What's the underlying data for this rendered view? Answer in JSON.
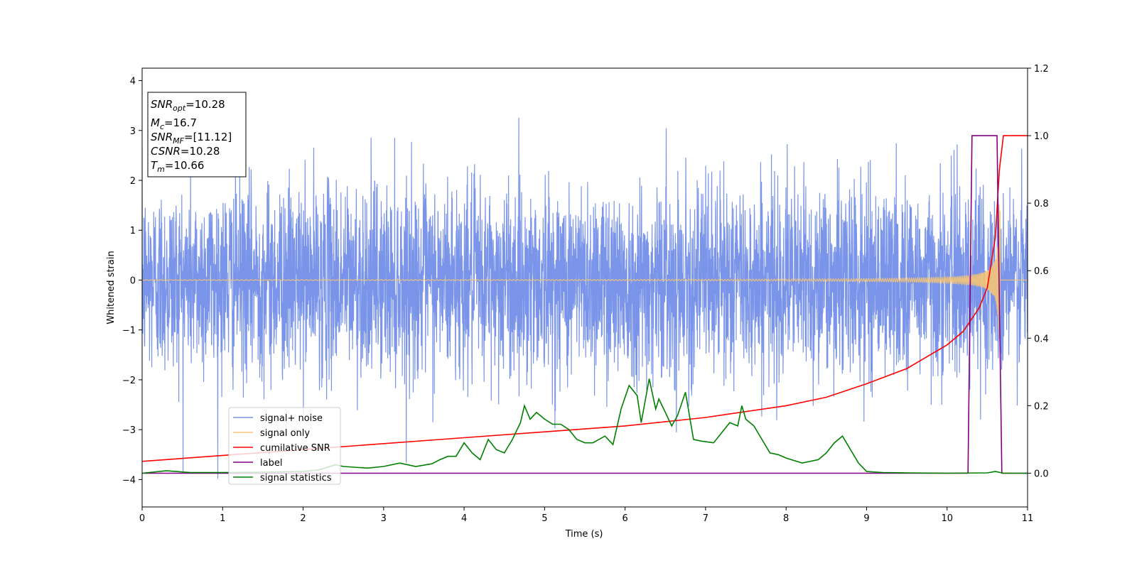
{
  "chart_data": {
    "type": "line",
    "xlabel": "Time (s)",
    "ylabel": "Whitened strain",
    "xlim": [
      0,
      11
    ],
    "ylim": [
      -4.55,
      4.25
    ],
    "y2lim": [
      -0.1,
      1.2
    ],
    "x_ticks": [
      "0",
      "1",
      "2",
      "3",
      "4",
      "5",
      "6",
      "7",
      "8",
      "9",
      "10",
      "11"
    ],
    "y_ticks": [
      "−4",
      "−3",
      "−2",
      "−1",
      "0",
      "1",
      "2",
      "3",
      "4"
    ],
    "y2_ticks": [
      "0.0",
      "0.2",
      "0.4",
      "0.6",
      "0.8",
      "1.0",
      "1.2"
    ],
    "grid": false,
    "legend_position": "lower-left",
    "annotation": {
      "snr_opt": {
        "main": "SNR",
        "sub": "opt",
        "value": "=10.28"
      },
      "mc": {
        "main": "M",
        "sub": "c",
        "value": "=16.7"
      },
      "snr_mf": {
        "main": "SNR",
        "sub": "MF",
        "value": "=[11.12]"
      },
      "csnr": {
        "main": "CSNR",
        "value": "=10.28"
      },
      "tm": {
        "main": "T",
        "sub": "m",
        "value": "=10.66"
      }
    },
    "series": [
      {
        "name": "signal+ noise",
        "color": "#7994e8",
        "axis": "left",
        "description": "whitened noisy strain, roughly ±2 with spikes to ~3.7 and down to -4.2"
      },
      {
        "name": "signal only",
        "color": "#f5c476",
        "axis": "left",
        "description": "chirp growing from ~0 to ±2.2 amplitude before merger at ~10.66 s"
      },
      {
        "name": "cumilative SNR",
        "color": "#ff0000",
        "axis": "right",
        "x": [
          0,
          2,
          4,
          6,
          7,
          8,
          8.5,
          9,
          9.5,
          10,
          10.2,
          10.4,
          10.5,
          10.6,
          10.65,
          10.7,
          11
        ],
        "values": [
          0.035,
          0.07,
          0.105,
          0.14,
          0.165,
          0.2,
          0.225,
          0.265,
          0.31,
          0.38,
          0.42,
          0.49,
          0.55,
          0.7,
          0.9,
          1.0,
          1.0
        ]
      },
      {
        "name": "label",
        "color": "#800080",
        "axis": "right",
        "x": [
          0,
          10.26,
          10.31,
          10.62,
          10.68,
          11
        ],
        "values": [
          0,
          0,
          1,
          1,
          0,
          0
        ]
      },
      {
        "name": "signal statistics",
        "color": "#008000",
        "axis": "right",
        "x": [
          0,
          0.3,
          0.6,
          1.0,
          1.5,
          2.0,
          2.2,
          2.4,
          2.5,
          2.8,
          3.0,
          3.2,
          3.4,
          3.6,
          3.7,
          3.8,
          3.9,
          4.0,
          4.1,
          4.2,
          4.3,
          4.4,
          4.5,
          4.6,
          4.7,
          4.75,
          4.82,
          4.9,
          5.0,
          5.1,
          5.2,
          5.3,
          5.4,
          5.5,
          5.6,
          5.75,
          5.85,
          5.95,
          6.05,
          6.15,
          6.2,
          6.3,
          6.38,
          6.42,
          6.5,
          6.58,
          6.65,
          6.75,
          6.85,
          6.95,
          7.1,
          7.2,
          7.3,
          7.4,
          7.45,
          7.5,
          7.6,
          7.7,
          7.8,
          7.9,
          8.0,
          8.2,
          8.4,
          8.5,
          8.6,
          8.7,
          8.8,
          8.9,
          9.0,
          9.2,
          9.5,
          10.0,
          10.5,
          10.6,
          10.7,
          11
        ],
        "values": [
          0.0,
          0.007,
          0.002,
          0.002,
          0.003,
          0.005,
          0.01,
          0.025,
          0.02,
          0.015,
          0.02,
          0.03,
          0.02,
          0.028,
          0.04,
          0.05,
          0.05,
          0.09,
          0.06,
          0.04,
          0.1,
          0.07,
          0.06,
          0.1,
          0.15,
          0.2,
          0.16,
          0.18,
          0.16,
          0.145,
          0.145,
          0.13,
          0.1,
          0.09,
          0.09,
          0.11,
          0.085,
          0.19,
          0.26,
          0.23,
          0.15,
          0.28,
          0.19,
          0.22,
          0.18,
          0.14,
          0.17,
          0.24,
          0.1,
          0.095,
          0.09,
          0.12,
          0.15,
          0.14,
          0.2,
          0.16,
          0.14,
          0.1,
          0.06,
          0.055,
          0.045,
          0.03,
          0.04,
          0.06,
          0.09,
          0.11,
          0.07,
          0.03,
          0.005,
          0.002,
          0.001,
          0.0,
          0.001,
          0.005,
          0.0,
          0.0
        ]
      }
    ]
  }
}
